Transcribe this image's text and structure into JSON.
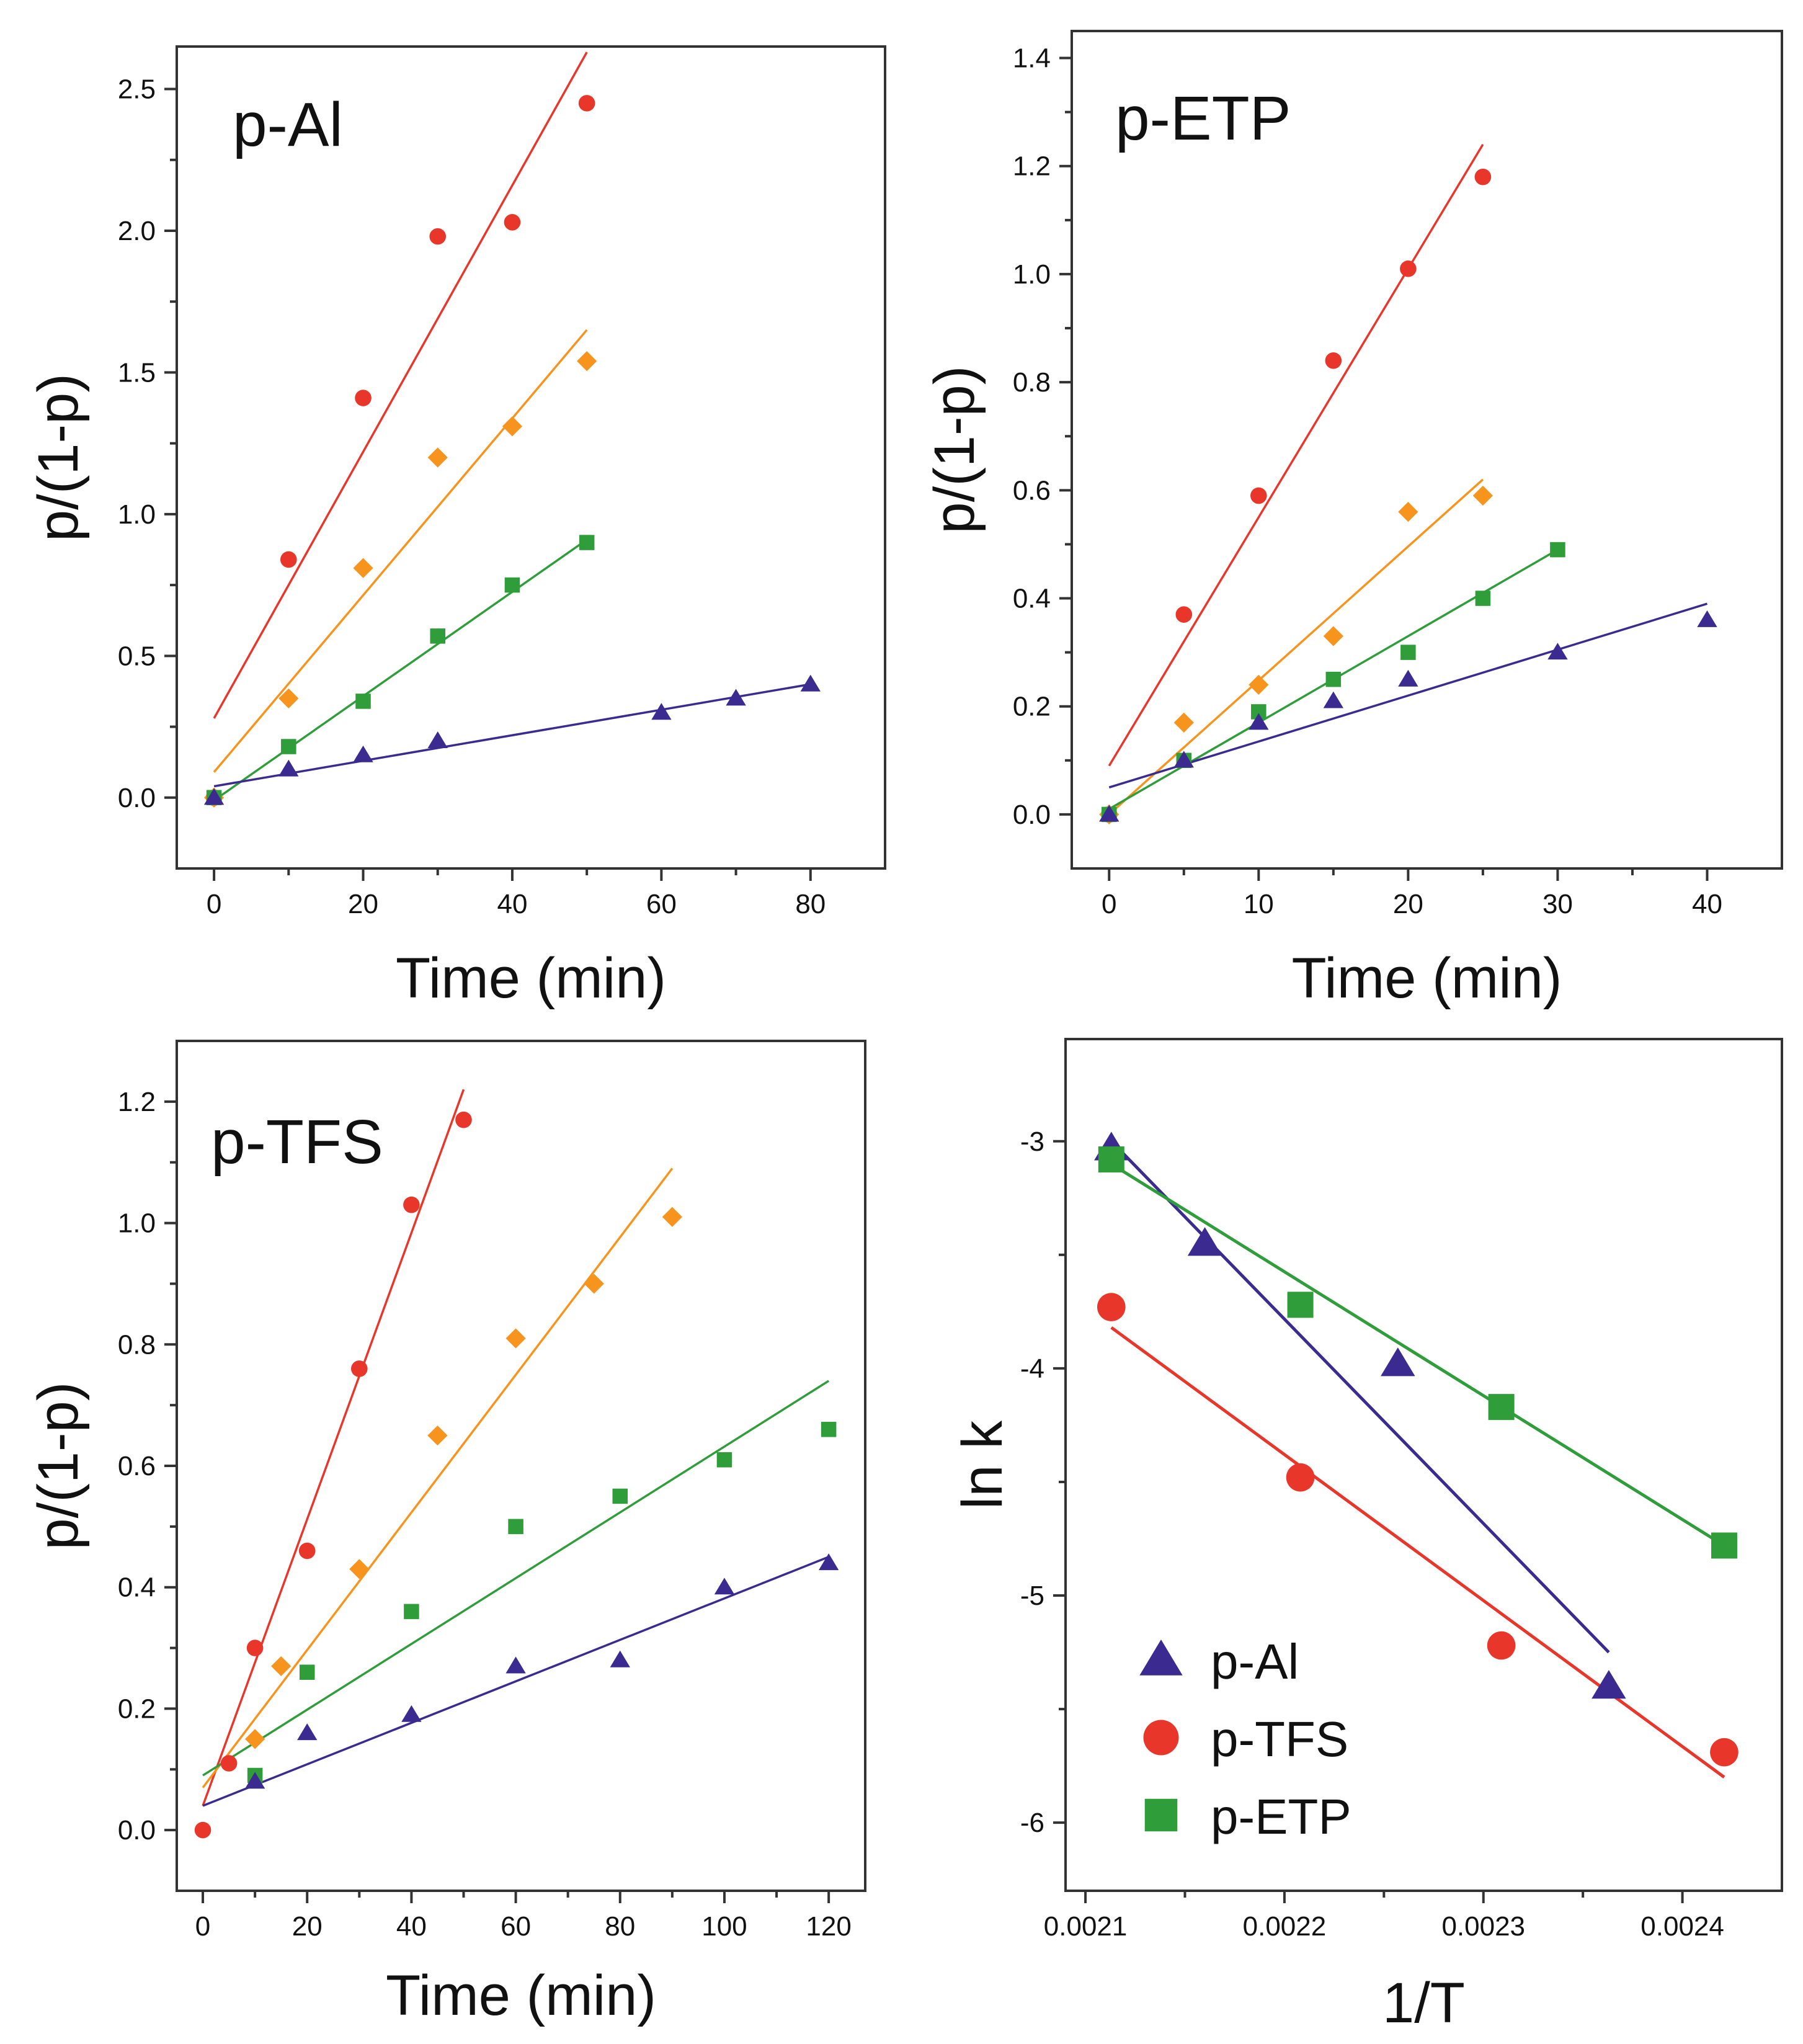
{
  "chart_data": [
    {
      "type": "scatter",
      "panel_title": "p-Al",
      "xlabel": "Time (min)",
      "ylabel": "p/(1-p)",
      "xlim": [
        -5,
        90
      ],
      "ylim": [
        -0.25,
        2.65
      ],
      "xticks": [
        0,
        20,
        40,
        60,
        80
      ],
      "xtick_labels": [
        "0",
        "20",
        "40",
        "60",
        "80"
      ],
      "yticks": [
        0.0,
        0.5,
        1.0,
        1.5,
        2.0,
        2.5
      ],
      "ytick_labels": [
        "0.0",
        "0.5",
        "1.0",
        "1.5",
        "2.0",
        "2.5"
      ],
      "series": [
        {
          "name": "red",
          "color": "#e8372a",
          "marker": "circle",
          "points": [
            [
              0,
              0.0
            ],
            [
              10,
              0.84
            ],
            [
              20,
              1.41
            ],
            [
              30,
              1.98
            ],
            [
              40,
              2.03
            ],
            [
              50,
              2.45
            ]
          ],
          "fit": [
            [
              0,
              0.28
            ],
            [
              50,
              2.63
            ]
          ]
        },
        {
          "name": "orange",
          "color": "#f7941d",
          "marker": "diamond",
          "points": [
            [
              0,
              0.0
            ],
            [
              10,
              0.35
            ],
            [
              20,
              0.81
            ],
            [
              30,
              1.2
            ],
            [
              40,
              1.31
            ],
            [
              50,
              1.54
            ]
          ],
          "fit": [
            [
              0,
              0.09
            ],
            [
              50,
              1.65
            ]
          ]
        },
        {
          "name": "green",
          "color": "#2e9d3a",
          "marker": "square",
          "points": [
            [
              0,
              0.0
            ],
            [
              10,
              0.18
            ],
            [
              20,
              0.34
            ],
            [
              30,
              0.57
            ],
            [
              40,
              0.75
            ],
            [
              50,
              0.9
            ]
          ],
          "fit": [
            [
              0,
              -0.01
            ],
            [
              50,
              0.91
            ]
          ]
        },
        {
          "name": "purple",
          "color": "#3b2a8f",
          "marker": "triangle",
          "points": [
            [
              0,
              0.0
            ],
            [
              10,
              0.1
            ],
            [
              20,
              0.15
            ],
            [
              30,
              0.2
            ],
            [
              60,
              0.3
            ],
            [
              70,
              0.35
            ],
            [
              80,
              0.4
            ]
          ],
          "fit": [
            [
              0,
              0.04
            ],
            [
              80,
              0.4
            ]
          ]
        }
      ]
    },
    {
      "type": "scatter",
      "panel_title": "p-ETP",
      "xlabel": "Time (min)",
      "ylabel": "p/(1-p)",
      "xlim": [
        -2.5,
        45
      ],
      "ylim": [
        -0.1,
        1.45
      ],
      "xticks": [
        0,
        10,
        20,
        30,
        40
      ],
      "xtick_labels": [
        "0",
        "10",
        "20",
        "30",
        "40"
      ],
      "yticks": [
        0.0,
        0.2,
        0.4,
        0.6,
        0.8,
        1.0,
        1.2,
        1.4
      ],
      "ytick_labels": [
        "0.0",
        "0.2",
        "0.4",
        "0.6",
        "0.8",
        "1.0",
        "1.2",
        "1.4"
      ],
      "series": [
        {
          "name": "red",
          "color": "#e8372a",
          "marker": "circle",
          "points": [
            [
              0,
              0.0
            ],
            [
              5,
              0.37
            ],
            [
              10,
              0.59
            ],
            [
              15,
              0.84
            ],
            [
              20,
              1.01
            ],
            [
              25,
              1.18
            ]
          ],
          "fit": [
            [
              0,
              0.09
            ],
            [
              25,
              1.24
            ]
          ]
        },
        {
          "name": "orange",
          "color": "#f7941d",
          "marker": "diamond",
          "points": [
            [
              0,
              0.0
            ],
            [
              5,
              0.17
            ],
            [
              10,
              0.24
            ],
            [
              15,
              0.33
            ],
            [
              20,
              0.56
            ],
            [
              25,
              0.59
            ]
          ],
          "fit": [
            [
              0,
              0.0
            ],
            [
              25,
              0.62
            ]
          ]
        },
        {
          "name": "green",
          "color": "#2e9d3a",
          "marker": "square",
          "points": [
            [
              0,
              0.0
            ],
            [
              5,
              0.1
            ],
            [
              10,
              0.19
            ],
            [
              15,
              0.25
            ],
            [
              20,
              0.3
            ],
            [
              25,
              0.4
            ],
            [
              30,
              0.49
            ]
          ],
          "fit": [
            [
              0,
              0.01
            ],
            [
              30,
              0.49
            ]
          ]
        },
        {
          "name": "purple",
          "color": "#3b2a8f",
          "marker": "triangle",
          "points": [
            [
              0,
              0.0
            ],
            [
              5,
              0.1
            ],
            [
              10,
              0.17
            ],
            [
              15,
              0.21
            ],
            [
              20,
              0.25
            ],
            [
              30,
              0.3
            ],
            [
              40,
              0.36
            ]
          ],
          "fit": [
            [
              0,
              0.05
            ],
            [
              40,
              0.39
            ]
          ]
        }
      ]
    },
    {
      "type": "scatter",
      "panel_title": "p-TFS",
      "xlabel": "Time (min)",
      "ylabel": "p/(1-p)",
      "xlim": [
        -5,
        127
      ],
      "ylim": [
        -0.1,
        1.3
      ],
      "xticks": [
        0,
        20,
        40,
        60,
        80,
        100,
        120
      ],
      "xtick_labels": [
        "0",
        "20",
        "40",
        "60",
        "80",
        "100",
        "120"
      ],
      "yticks": [
        0.0,
        0.2,
        0.4,
        0.6,
        0.8,
        1.0,
        1.2
      ],
      "ytick_labels": [
        "0.0",
        "0.2",
        "0.4",
        "0.6",
        "0.8",
        "1.0",
        "1.2"
      ],
      "series": [
        {
          "name": "red",
          "color": "#e8372a",
          "marker": "circle",
          "points": [
            [
              0,
              0.0
            ],
            [
              5,
              0.11
            ],
            [
              10,
              0.3
            ],
            [
              20,
              0.46
            ],
            [
              30,
              0.76
            ],
            [
              40,
              1.03
            ],
            [
              50,
              1.17
            ]
          ],
          "fit": [
            [
              0,
              0.04
            ],
            [
              50,
              1.22
            ]
          ]
        },
        {
          "name": "orange",
          "color": "#f7941d",
          "marker": "diamond",
          "points": [
            [
              10,
              0.15
            ],
            [
              15,
              0.27
            ],
            [
              30,
              0.43
            ],
            [
              45,
              0.65
            ],
            [
              60,
              0.81
            ],
            [
              75,
              0.9
            ],
            [
              90,
              1.01
            ]
          ],
          "fit": [
            [
              0,
              0.07
            ],
            [
              90,
              1.09
            ]
          ]
        },
        {
          "name": "green",
          "color": "#2e9d3a",
          "marker": "square",
          "points": [
            [
              10,
              0.09
            ],
            [
              20,
              0.26
            ],
            [
              40,
              0.36
            ],
            [
              60,
              0.5
            ],
            [
              80,
              0.55
            ],
            [
              100,
              0.61
            ],
            [
              120,
              0.66
            ]
          ],
          "fit": [
            [
              0,
              0.09
            ],
            [
              120,
              0.74
            ]
          ]
        },
        {
          "name": "purple",
          "color": "#3b2a8f",
          "marker": "triangle",
          "points": [
            [
              10,
              0.08
            ],
            [
              20,
              0.16
            ],
            [
              40,
              0.19
            ],
            [
              60,
              0.27
            ],
            [
              80,
              0.28
            ],
            [
              100,
              0.4
            ],
            [
              120,
              0.44
            ]
          ],
          "fit": [
            [
              0,
              0.04
            ],
            [
              120,
              0.45
            ]
          ]
        }
      ]
    },
    {
      "type": "scatter",
      "panel_title": "",
      "xlabel": "1/T",
      "ylabel": "ln k",
      "xlim": [
        0.00209,
        0.00245
      ],
      "ylim": [
        -6.3,
        -2.55
      ],
      "xticks": [
        0.0021,
        0.0022,
        0.0023,
        0.0024
      ],
      "xtick_labels": [
        "0.0021",
        "0.0022",
        "0.0023",
        "0.0024"
      ],
      "yticks": [
        -6,
        -5,
        -4,
        -3
      ],
      "ytick_labels": [
        "-6",
        "-5",
        "-4",
        "-3"
      ],
      "series": [
        {
          "name": "p-Al",
          "color": "#3b2a8f",
          "marker": "triangle",
          "points": [
            [
              0.002113,
              -3.03
            ],
            [
              0.00216,
              -3.45
            ],
            [
              0.002257,
              -3.98
            ],
            [
              0.002363,
              -5.4
            ]
          ],
          "fit": [
            [
              0.002113,
              -3.0
            ],
            [
              0.002363,
              -5.25
            ]
          ]
        },
        {
          "name": "p-TFS",
          "color": "#e8372a",
          "marker": "circle",
          "points": [
            [
              0.002113,
              -3.73
            ],
            [
              0.002208,
              -4.48
            ],
            [
              0.002309,
              -5.22
            ],
            [
              0.002421,
              -5.69
            ]
          ],
          "fit": [
            [
              0.002113,
              -3.82
            ],
            [
              0.002421,
              -5.8
            ]
          ]
        },
        {
          "name": "p-ETP",
          "color": "#2e9d3a",
          "marker": "square",
          "points": [
            [
              0.002113,
              -3.08
            ],
            [
              0.002208,
              -3.72
            ],
            [
              0.002309,
              -4.17
            ],
            [
              0.002421,
              -4.78
            ]
          ],
          "fit": [
            [
              0.002113,
              -3.1
            ],
            [
              0.002421,
              -4.78
            ]
          ]
        }
      ],
      "legend": {
        "placement": "bottom-left",
        "entries": [
          {
            "label": "p-Al",
            "color": "#3b2a8f",
            "marker": "triangle"
          },
          {
            "label": "p-TFS",
            "color": "#e8372a",
            "marker": "circle"
          },
          {
            "label": "p-ETP",
            "color": "#2e9d3a",
            "marker": "square"
          }
        ]
      }
    }
  ]
}
